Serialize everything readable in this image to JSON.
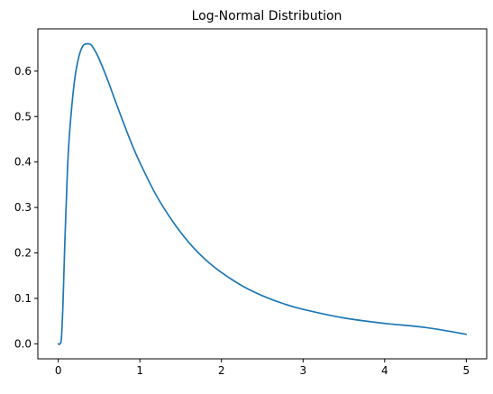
{
  "chart_data": {
    "type": "line",
    "title": "Log-Normal Distribution",
    "xlabel": "",
    "ylabel": "",
    "xlim": [
      -0.25,
      5.25
    ],
    "ylim": [
      -0.033,
      0.693
    ],
    "xticks": [
      0,
      1,
      2,
      3,
      4,
      5
    ],
    "yticks": [
      0.0,
      0.1,
      0.2,
      0.3,
      0.4,
      0.5,
      0.6
    ],
    "xtick_labels": [
      "0",
      "1",
      "2",
      "3",
      "4",
      "5"
    ],
    "ytick_labels": [
      "0.0",
      "0.1",
      "0.2",
      "0.3",
      "0.4",
      "0.5",
      "0.6"
    ],
    "grid": false,
    "legend": false,
    "series": [
      {
        "color": "#1f77b4",
        "x": [
          0.0,
          0.02,
          0.04,
          0.06,
          0.08,
          0.1,
          0.12,
          0.15,
          0.2,
          0.25,
          0.3,
          0.35,
          0.4,
          0.45,
          0.5,
          0.6,
          0.7,
          0.8,
          0.9,
          1.0,
          1.2,
          1.4,
          1.6,
          1.8,
          2.0,
          2.25,
          2.5,
          2.75,
          3.0,
          3.5,
          4.0,
          4.5,
          5.0
        ],
        "y": [
          0.0,
          0.0,
          0.015,
          0.1,
          0.22,
          0.32,
          0.41,
          0.49,
          0.58,
          0.63,
          0.655,
          0.66,
          0.658,
          0.645,
          0.627,
          0.583,
          0.534,
          0.486,
          0.44,
          0.399,
          0.327,
          0.27,
          0.223,
          0.186,
          0.157,
          0.128,
          0.106,
          0.089,
          0.076,
          0.057,
          0.045,
          0.036,
          0.021
        ]
      }
    ]
  }
}
